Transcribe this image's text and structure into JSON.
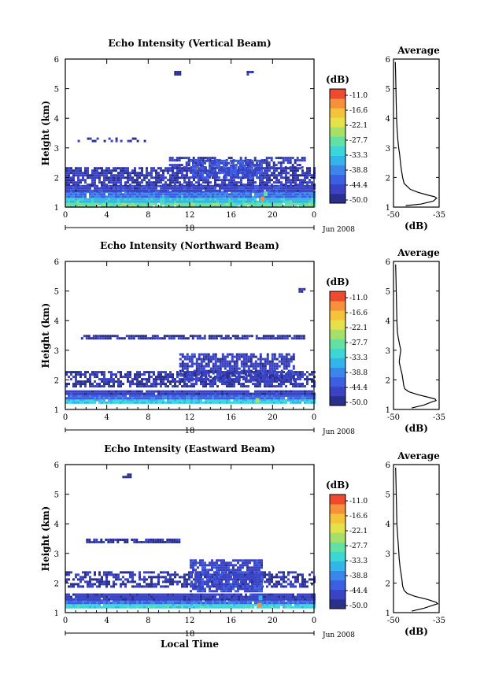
{
  "chart_data": [
    {
      "type": "heatmap",
      "title": "Echo Intensity (Vertical Beam)",
      "ylabel": "Height (km)",
      "xlabel": "",
      "x_ticks": [
        "0",
        "4",
        "8",
        "12",
        "16",
        "20",
        "0"
      ],
      "y_ticks": [
        "1",
        "2",
        "3",
        "4",
        "5",
        "6"
      ],
      "xlim": [
        0,
        24
      ],
      "ylim": [
        1,
        6
      ],
      "date_day": "18",
      "date_month": "Jun 2008",
      "colorbar": {
        "unit": "(dB)",
        "ticks": [
          "-11.0",
          "-16.6",
          "-22.1",
          "-27.7",
          "-33.3",
          "-38.8",
          "-44.4",
          "-50.0"
        ]
      },
      "layers": [
        {
          "h0": 1.05,
          "h1": 1.22,
          "x0": 0,
          "x1": 24,
          "level": 0.55
        },
        {
          "h0": 1.22,
          "h1": 1.38,
          "x0": 0,
          "x1": 24,
          "level": 0.38
        },
        {
          "h0": 1.38,
          "h1": 1.55,
          "x0": 0,
          "x1": 24,
          "level": 0.22
        },
        {
          "h0": 1.55,
          "h1": 1.75,
          "x0": 0,
          "x1": 24,
          "level": 0.1
        },
        {
          "h0": 1.75,
          "h1": 2.35,
          "x0": 0,
          "x1": 24,
          "level": 0.06,
          "density": 0.75
        },
        {
          "h0": 2.35,
          "h1": 2.7,
          "x0": 10,
          "x1": 23,
          "level": 0.05,
          "density": 0.55
        },
        {
          "h0": 2.0,
          "h1": 2.6,
          "x0": 12,
          "x1": 19,
          "level": 0.14,
          "density": 0.8
        },
        {
          "h0": 3.25,
          "h1": 3.35,
          "x0": 0.5,
          "x1": 8,
          "level": 0.02,
          "density": 0.35
        },
        {
          "h0": 5.45,
          "h1": 5.6,
          "x0": 10.5,
          "x1": 11,
          "level": 0.02,
          "density": 0.7
        },
        {
          "h0": 5.45,
          "h1": 5.6,
          "x0": 17.5,
          "x1": 18,
          "level": 0.02,
          "density": 0.7
        }
      ],
      "hotspots": [
        {
          "x": 19.0,
          "h": 1.28,
          "level": 0.95
        },
        {
          "x": 19.3,
          "h": 1.45,
          "level": 0.5
        }
      ],
      "profile": {
        "title": "Average",
        "xlabel": "(dB)",
        "x_ticks": [
          "-50",
          "-35"
        ],
        "xlim": [
          -50,
          -35
        ],
        "heights": [
          1.05,
          1.1,
          1.2,
          1.3,
          1.35,
          1.4,
          1.5,
          1.6,
          1.7,
          1.8,
          2.0,
          2.2,
          2.4,
          2.6,
          2.8,
          3.0,
          3.3,
          3.6,
          4.0,
          4.5,
          5.0,
          5.5,
          5.9
        ],
        "values": [
          -46,
          -41,
          -37,
          -35.8,
          -36.5,
          -38.5,
          -42,
          -44.5,
          -45.5,
          -46.5,
          -47,
          -47.3,
          -47.6,
          -47.8,
          -48,
          -48.3,
          -48.6,
          -48.8,
          -49,
          -49.1,
          -49.2,
          -49.3,
          -49.4
        ]
      }
    },
    {
      "type": "heatmap",
      "title": "Echo Intensity (Northward Beam)",
      "ylabel": "Height (km)",
      "xlabel": "",
      "x_ticks": [
        "0",
        "4",
        "8",
        "12",
        "16",
        "20",
        "0"
      ],
      "y_ticks": [
        "1",
        "2",
        "3",
        "4",
        "5",
        "6"
      ],
      "xlim": [
        0,
        24
      ],
      "ylim": [
        1,
        6
      ],
      "date_day": "18",
      "date_month": "Jun 2008",
      "colorbar": {
        "unit": "(dB)",
        "ticks": [
          "-11.0",
          "-16.6",
          "-22.1",
          "-27.7",
          "-33.3",
          "-38.8",
          "-44.4",
          "-50.0"
        ]
      },
      "layers": [
        {
          "h0": 1.2,
          "h1": 1.35,
          "x0": 0,
          "x1": 24,
          "level": 0.42
        },
        {
          "h0": 1.35,
          "h1": 1.5,
          "x0": 0,
          "x1": 24,
          "level": 0.2
        },
        {
          "h0": 1.5,
          "h1": 1.65,
          "x0": 0,
          "x1": 24,
          "level": 0.08
        },
        {
          "h0": 1.8,
          "h1": 2.3,
          "x0": 0,
          "x1": 24,
          "level": 0.05,
          "density": 0.7
        },
        {
          "h0": 2.0,
          "h1": 2.9,
          "x0": 11,
          "x1": 22,
          "level": 0.08,
          "density": 0.75
        },
        {
          "h0": 3.4,
          "h1": 3.52,
          "x0": 1.5,
          "x1": 23,
          "level": 0.03,
          "density": 0.85
        },
        {
          "h0": 5.0,
          "h1": 5.1,
          "x0": 22.5,
          "x1": 23,
          "level": 0.02,
          "density": 0.6
        }
      ],
      "hotspots": [
        {
          "x": 18.5,
          "h": 1.3,
          "level": 0.6
        }
      ],
      "profile": {
        "title": "Average",
        "xlabel": "(dB)",
        "x_ticks": [
          "-50",
          "-35"
        ],
        "xlim": [
          -50,
          -35
        ],
        "heights": [
          1.05,
          1.15,
          1.25,
          1.3,
          1.35,
          1.4,
          1.5,
          1.6,
          1.7,
          1.8,
          2.0,
          2.2,
          2.4,
          2.6,
          2.8,
          3.0,
          3.2,
          3.4,
          3.6,
          4.0,
          4.5,
          5.0,
          5.5,
          5.9
        ],
        "values": [
          -44,
          -40,
          -37.5,
          -36,
          -36.3,
          -38,
          -42,
          -45,
          -46.3,
          -46.6,
          -46.9,
          -47.2,
          -47.7,
          -48.1,
          -47.9,
          -47.6,
          -48,
          -48.4,
          -48.7,
          -48.9,
          -49,
          -49.1,
          -49.2,
          -49.3
        ]
      }
    },
    {
      "type": "heatmap",
      "title": "Echo Intensity (Eastward Beam)",
      "ylabel": "Height (km)",
      "xlabel": "Local Time",
      "x_ticks": [
        "0",
        "4",
        "8",
        "12",
        "16",
        "20",
        "0"
      ],
      "y_ticks": [
        "1",
        "2",
        "3",
        "4",
        "5",
        "6"
      ],
      "xlim": [
        0,
        24
      ],
      "ylim": [
        1,
        6
      ],
      "date_day": "18",
      "date_month": "Jun 2008",
      "colorbar": {
        "unit": "(dB)",
        "ticks": [
          "-11.0",
          "-16.6",
          "-22.1",
          "-27.7",
          "-33.3",
          "-38.8",
          "-44.4",
          "-50.0"
        ]
      },
      "layers": [
        {
          "h0": 1.15,
          "h1": 1.3,
          "x0": 0,
          "x1": 24,
          "level": 0.45
        },
        {
          "h0": 1.3,
          "h1": 1.45,
          "x0": 0,
          "x1": 24,
          "level": 0.22
        },
        {
          "h0": 1.45,
          "h1": 1.65,
          "x0": 0,
          "x1": 24,
          "level": 0.08
        },
        {
          "h0": 1.9,
          "h1": 2.4,
          "x0": 0,
          "x1": 24,
          "level": 0.05,
          "density": 0.55
        },
        {
          "h0": 1.7,
          "h1": 2.8,
          "x0": 12,
          "x1": 19,
          "level": 0.1,
          "density": 0.8
        },
        {
          "h0": 3.35,
          "h1": 3.5,
          "x0": 2,
          "x1": 11,
          "level": 0.03,
          "density": 0.8
        },
        {
          "h0": 5.6,
          "h1": 5.7,
          "x0": 5.5,
          "x1": 6.2,
          "level": 0.02,
          "density": 0.6
        }
      ],
      "hotspots": [
        {
          "x": 18.7,
          "h": 1.25,
          "level": 0.95
        },
        {
          "x": 18.8,
          "h": 1.5,
          "level": 0.4
        }
      ],
      "profile": {
        "title": "Average",
        "xlabel": "(dB)",
        "x_ticks": [
          "-50",
          "-35"
        ],
        "xlim": [
          -50,
          -35
        ],
        "heights": [
          1.05,
          1.15,
          1.25,
          1.3,
          1.35,
          1.45,
          1.55,
          1.65,
          1.75,
          1.9,
          2.1,
          2.3,
          2.5,
          2.8,
          3.1,
          3.4,
          3.7,
          4.0,
          4.5,
          5.0,
          5.5,
          5.9
        ],
        "values": [
          -44,
          -40,
          -37,
          -35.5,
          -36,
          -39,
          -43,
          -45.5,
          -46.5,
          -47,
          -47.2,
          -47.5,
          -47.8,
          -48.1,
          -48.3,
          -48.5,
          -48.7,
          -48.9,
          -49,
          -49.1,
          -49.2,
          -49.3
        ]
      }
    }
  ]
}
